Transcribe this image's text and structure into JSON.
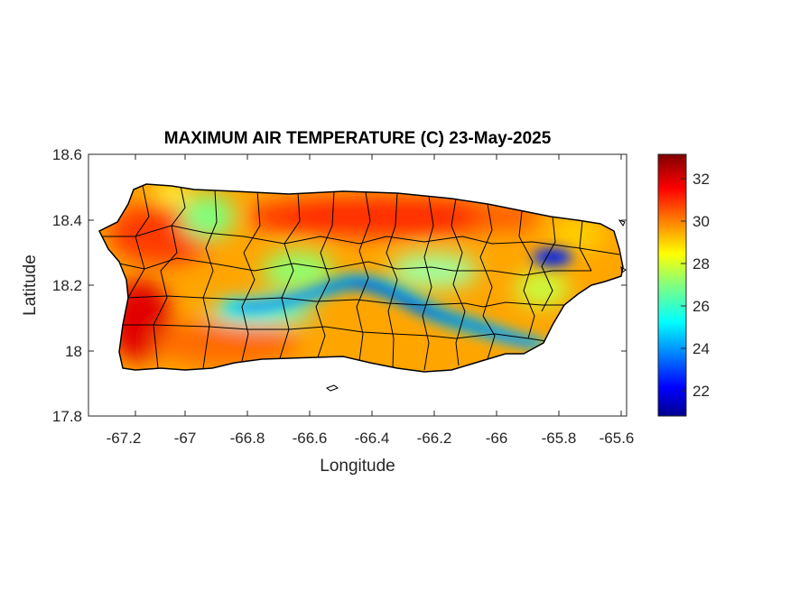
{
  "title": "MAXIMUM AIR TEMPERATURE (C) 23-May-2025",
  "xlabel": "Longitude",
  "ylabel": "Latitude",
  "xticks": [
    "-67.2",
    "-67",
    "-66.8",
    "-66.6",
    "-66.4",
    "-66.2",
    "-66",
    "-65.8",
    "-65.6"
  ],
  "yticks": [
    "18.6",
    "18.4",
    "18.2",
    "18",
    "17.8"
  ],
  "colorbar": {
    "ticks": [
      "32",
      "30",
      "28",
      "26",
      "24",
      "22"
    ],
    "range": [
      20.8,
      33.2
    ],
    "colormap": "jet"
  },
  "map_data": {
    "region": "Puerto Rico",
    "lon_range": [
      -67.3,
      -65.58
    ],
    "lat_range": [
      17.8,
      18.6
    ],
    "units": "C",
    "cool_band": "central mountain ridge, ~22–26 C",
    "warm_areas": "north coast and southwest, ~30–33 C"
  }
}
